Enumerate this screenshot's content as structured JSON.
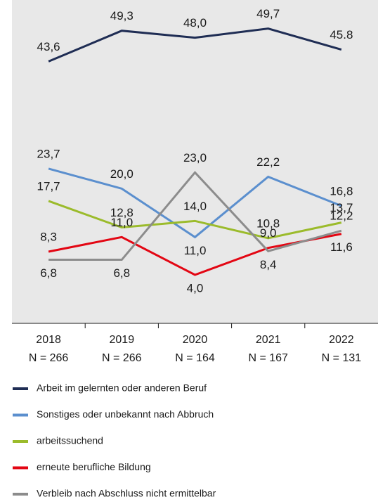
{
  "chart_data": {
    "type": "line",
    "categories": [
      "2018",
      "2019",
      "2020",
      "2021",
      "2022"
    ],
    "sample_sizes": [
      "N = 266",
      "N = 266",
      "N = 164",
      "N = 167",
      "N = 131"
    ],
    "ylim": [
      -5,
      55
    ],
    "series": [
      {
        "name": "Arbeit im gelernten oder anderen Beruf",
        "color": "#1f2d54",
        "values": [
          43.6,
          49.3,
          48.0,
          49.7,
          45.8
        ],
        "value_labels": [
          "43,6",
          "49,3",
          "48,0",
          "49,7",
          "45.8"
        ]
      },
      {
        "name": "Sonstiges oder unbekannt nach Abbruch",
        "color": "#5b8fce",
        "values": [
          23.7,
          20.0,
          11.0,
          22.2,
          16.8
        ],
        "value_labels": [
          "23,7",
          "20,0",
          "11,0",
          "22,2",
          "16,8"
        ]
      },
      {
        "name": "arbeitssuchend",
        "color": "#9bbb2b",
        "values": [
          17.7,
          12.8,
          14.0,
          10.8,
          13.7
        ],
        "value_labels": [
          "17,7",
          "12,8",
          "14,0",
          "10,8",
          "13,7"
        ]
      },
      {
        "name": "erneute berufliche Bildung",
        "color": "#e30613",
        "values": [
          8.3,
          11.0,
          4.0,
          9.0,
          11.6
        ],
        "value_labels": [
          "8,3",
          "11,0",
          "4,0",
          "9,0",
          "11,6"
        ]
      },
      {
        "name": "Verbleib nach Abschluss nicht ermittelbar",
        "color": "#8c8c8c",
        "values": [
          6.8,
          6.8,
          23.0,
          8.4,
          12.2
        ],
        "value_labels": [
          "6,8",
          "6,8",
          "23,0",
          "8,4",
          "12,2"
        ]
      }
    ]
  }
}
